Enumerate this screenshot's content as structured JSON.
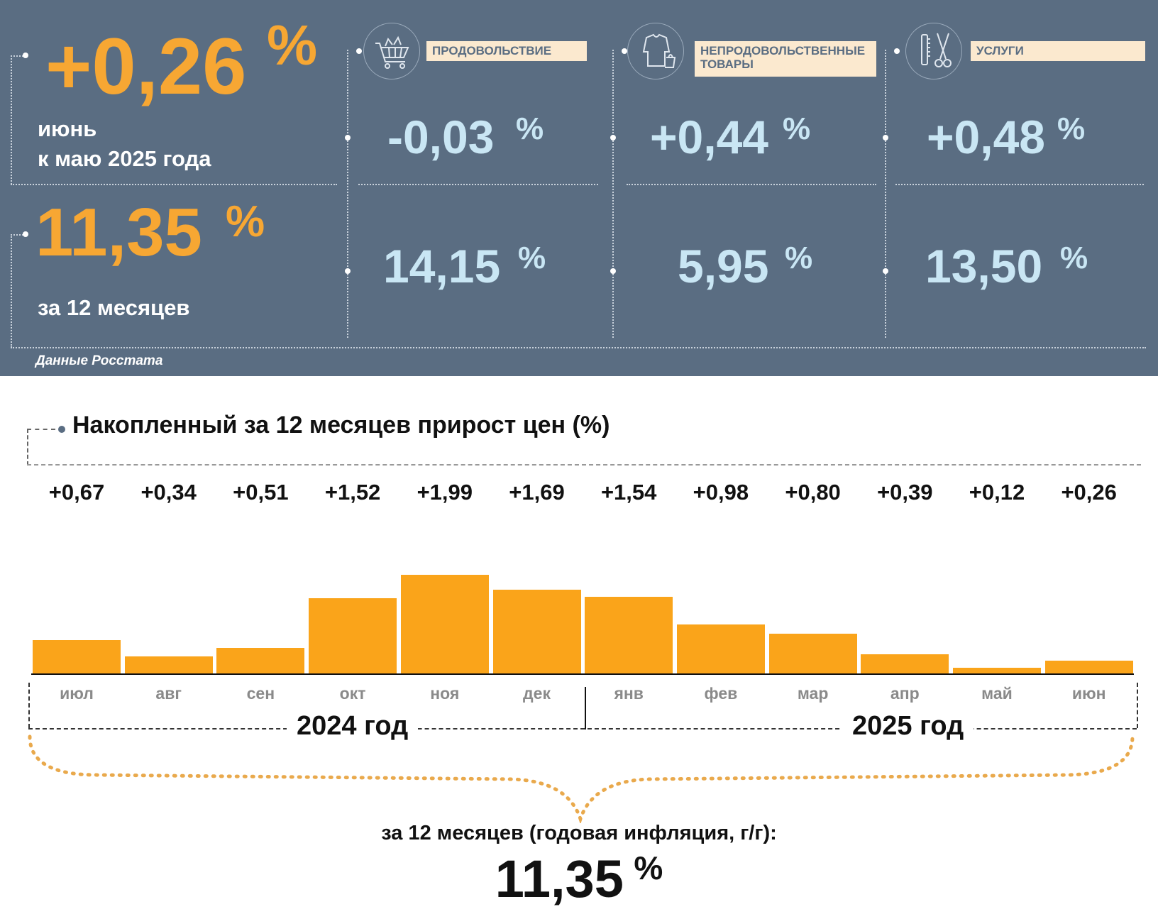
{
  "monthly": {
    "value": "+0,26",
    "unit": "%",
    "caption_line1": "июнь",
    "caption_line2": "к маю 2025 года"
  },
  "annual": {
    "value": "11,35",
    "unit": "%",
    "caption": "за 12 месяцев"
  },
  "categories": [
    {
      "label": "ПРОДОВОЛЬСТВИЕ",
      "icon": "shopping-cart-icon",
      "monthly": "-0,03",
      "annual": "14,15",
      "unit": "%"
    },
    {
      "label": "НЕПРОДОВОЛЬСТВЕННЫЕ ТОВАРЫ",
      "icon": "clothing-icon",
      "monthly": "+0,44",
      "annual": "5,95",
      "unit": "%"
    },
    {
      "label": "УСЛУГИ",
      "icon": "scissors-comb-icon",
      "monthly": "+0,48",
      "annual": "13,50",
      "unit": "%"
    }
  ],
  "source": "Данные Росстата",
  "colors": {
    "panel": "#5a6d82",
    "accent_orange": "#f7a733",
    "bar": "#faa41a",
    "light_blue": "#c9e6f4",
    "label_bg": "#fbe9cf"
  },
  "chart_data": {
    "type": "bar",
    "title": "Накопленный за 12 месяцев прирост цен (%)",
    "categories": [
      "июл",
      "авг",
      "сен",
      "окт",
      "ноя",
      "дек",
      "янв",
      "фев",
      "мар",
      "апр",
      "май",
      "июн"
    ],
    "value_labels": [
      "+0,67",
      "+0,34",
      "+0,51",
      "+1,52",
      "+1,99",
      "+1,69",
      "+1,54",
      "+0,98",
      "+0,80",
      "+0,39",
      "+0,12",
      "+0,26"
    ],
    "values": [
      0.67,
      0.34,
      0.51,
      1.52,
      1.99,
      1.69,
      1.54,
      0.98,
      0.8,
      0.39,
      0.12,
      0.26
    ],
    "year_groups": [
      "2024 год",
      "2025 год"
    ],
    "ylim": [
      0,
      2.0
    ],
    "grid": false
  },
  "summary": {
    "caption": "за 12 месяцев (годовая инфляция, г/г):",
    "value": "11,35",
    "unit": "%"
  }
}
